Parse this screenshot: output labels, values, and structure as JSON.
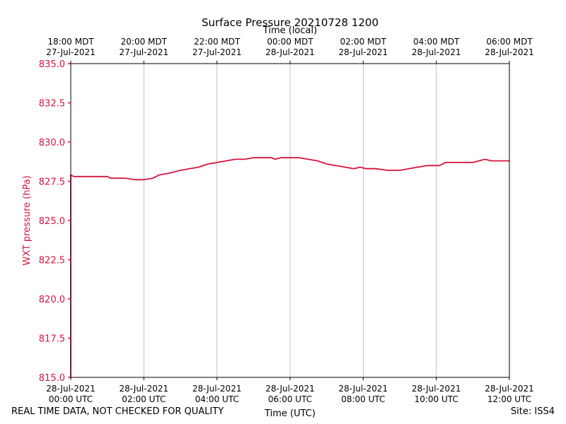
{
  "chart_data": {
    "type": "line",
    "title": "Surface Pressure 20210728 1200",
    "xlabel": "Time (UTC)",
    "x2label": "Time (local)",
    "ylabel": "WXT pressure (hPa)",
    "ylim": [
      815.0,
      835.0
    ],
    "yticks": [
      "815.0",
      "817.5",
      "820.0",
      "822.5",
      "825.0",
      "827.5",
      "830.0",
      "832.5",
      "835.0"
    ],
    "xlim": [
      "2021-07-28 00:00",
      "2021-07-28 12:00"
    ],
    "xticks": [
      {
        "line1": "28-Jul-2021",
        "line2": "00:00 UTC"
      },
      {
        "line1": "28-Jul-2021",
        "line2": "02:00 UTC"
      },
      {
        "line1": "28-Jul-2021",
        "line2": "04:00 UTC"
      },
      {
        "line1": "28-Jul-2021",
        "line2": "06:00 UTC"
      },
      {
        "line1": "28-Jul-2021",
        "line2": "08:00 UTC"
      },
      {
        "line1": "28-Jul-2021",
        "line2": "10:00 UTC"
      },
      {
        "line1": "28-Jul-2021",
        "line2": "12:00 UTC"
      }
    ],
    "x2ticks": [
      {
        "line1": "18:00 MDT",
        "line2": "27-Jul-2021"
      },
      {
        "line1": "20:00 MDT",
        "line2": "27-Jul-2021"
      },
      {
        "line1": "22:00 MDT",
        "line2": "27-Jul-2021"
      },
      {
        "line1": "00:00 MDT",
        "line2": "28-Jul-2021"
      },
      {
        "line1": "02:00 MDT",
        "line2": "28-Jul-2021"
      },
      {
        "line1": "04:00 MDT",
        "line2": "28-Jul-2021"
      },
      {
        "line1": "06:00 MDT",
        "line2": "28-Jul-2021"
      }
    ],
    "grid": "vertical",
    "series_color": "#d6143c",
    "series": [
      {
        "x": [
          "2021-07-28 00:00",
          "2021-07-28 00:00",
          "2021-07-28 00:05",
          "2021-07-28 00:30",
          "2021-07-28 01:00",
          "2021-07-28 01:05",
          "2021-07-28 01:15",
          "2021-07-28 01:30",
          "2021-07-28 01:45",
          "2021-07-28 02:00",
          "2021-07-28 02:15",
          "2021-07-28 02:25",
          "2021-07-28 02:40",
          "2021-07-28 02:50",
          "2021-07-28 03:00",
          "2021-07-28 03:15",
          "2021-07-28 03:30",
          "2021-07-28 03:45",
          "2021-07-28 04:00",
          "2021-07-28 04:15",
          "2021-07-28 04:30",
          "2021-07-28 04:45",
          "2021-07-28 05:00",
          "2021-07-28 05:15",
          "2021-07-28 05:30",
          "2021-07-28 05:35",
          "2021-07-28 05:45",
          "2021-07-28 06:00",
          "2021-07-28 06:15",
          "2021-07-28 06:30",
          "2021-07-28 06:45",
          "2021-07-28 07:00",
          "2021-07-28 07:15",
          "2021-07-28 07:30",
          "2021-07-28 07:45",
          "2021-07-28 07:55",
          "2021-07-28 08:05",
          "2021-07-28 08:20",
          "2021-07-28 08:40",
          "2021-07-28 09:00",
          "2021-07-28 09:15",
          "2021-07-28 09:30",
          "2021-07-28 09:45",
          "2021-07-28 10:05",
          "2021-07-28 10:15",
          "2021-07-28 10:30",
          "2021-07-28 11:00",
          "2021-07-28 11:10",
          "2021-07-28 11:20",
          "2021-07-28 11:30",
          "2021-07-28 11:45",
          "2021-07-28 12:00"
        ],
        "values": [
          815.0,
          827.9,
          827.8,
          827.8,
          827.8,
          827.7,
          827.7,
          827.7,
          827.6,
          827.6,
          827.7,
          827.9,
          828.0,
          828.1,
          828.2,
          828.3,
          828.4,
          828.6,
          828.7,
          828.8,
          828.9,
          828.9,
          829.0,
          829.0,
          829.0,
          828.9,
          829.0,
          829.0,
          829.0,
          828.9,
          828.8,
          828.6,
          828.5,
          828.4,
          828.3,
          828.4,
          828.3,
          828.3,
          828.2,
          828.2,
          828.3,
          828.4,
          828.5,
          828.5,
          828.7,
          828.7,
          828.7,
          828.8,
          828.9,
          828.8,
          828.8,
          828.8
        ]
      }
    ]
  },
  "footer": {
    "left": "REAL TIME DATA, NOT CHECKED FOR QUALITY",
    "right": "Site: ISS4"
  }
}
